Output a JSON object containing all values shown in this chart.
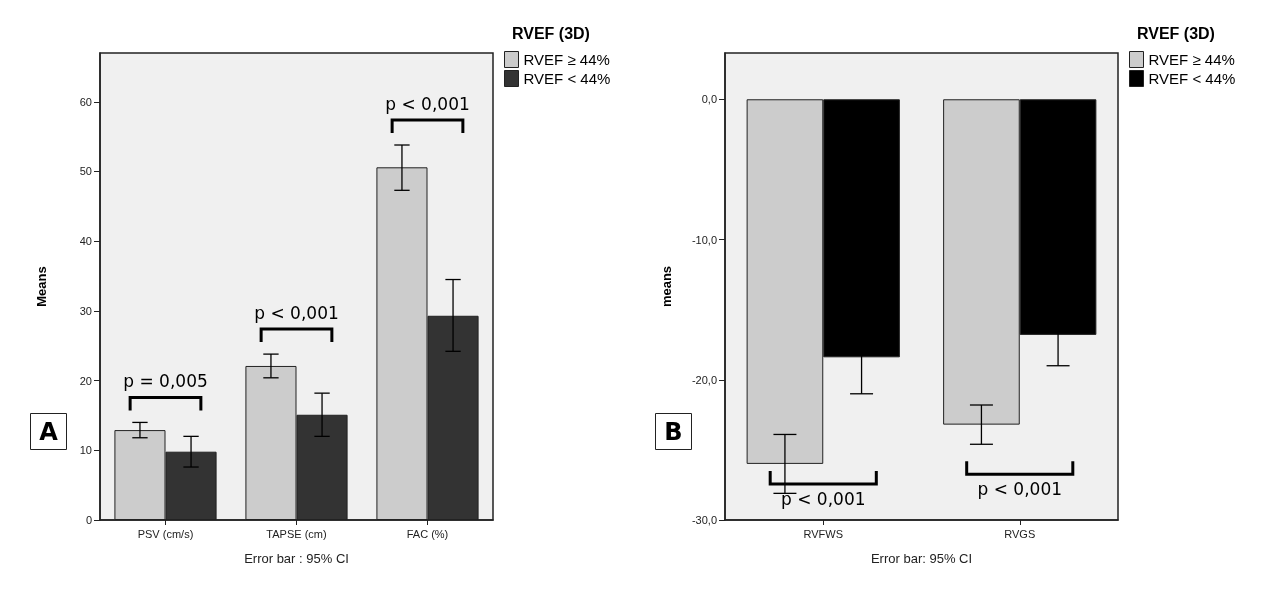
{
  "chart_data": [
    {
      "type": "bar",
      "ylabel": "Means",
      "xlabel": "Error bar : 95% CI",
      "legend_title": "RVEF (3D)",
      "legend": "top right",
      "categories": [
        "PSV (cm/s)",
        "TAPSE (cm)",
        "FAC (%)"
      ],
      "series": [
        {
          "name": "RVEF ≥ 44%",
          "color": "#cccccc",
          "values": [
            12.9,
            22.1,
            50.6
          ],
          "errors": [
            [
              11.8,
              14.0
            ],
            [
              20.4,
              23.8
            ],
            [
              47.3,
              53.8
            ]
          ]
        },
        {
          "name": "RVEF < 44%",
          "color": "#333333",
          "values": [
            9.8,
            15.1,
            29.3
          ],
          "errors": [
            [
              7.6,
              12.0
            ],
            [
              12.0,
              18.2
            ],
            [
              24.2,
              34.5
            ]
          ]
        }
      ],
      "ylim": [
        0,
        67
      ],
      "yticks": [
        0,
        10,
        20,
        30,
        40,
        50,
        60
      ],
      "grid": false,
      "annotations": [
        "A",
        "p = 0,005",
        "p < 0,001",
        "p < 0,001"
      ]
    },
    {
      "type": "bar",
      "ylabel": "means",
      "xlabel": "Error bar: 95% CI",
      "legend_title": "RVEF (3D)",
      "legend": "top right",
      "categories": [
        "RVFWS",
        "RVGS"
      ],
      "series": [
        {
          "name": "RVEF ≥ 44%",
          "color": "#cccccc",
          "values": [
            -26.0,
            -23.2
          ],
          "errors": [
            [
              -28.1,
              -23.9
            ],
            [
              -24.6,
              -21.8
            ]
          ]
        },
        {
          "name": "RVEF < 44%",
          "color": "#000000",
          "values": [
            -18.4,
            -16.8
          ],
          "errors": [
            2.6,
            2.2
          ]
        }
      ],
      "ylim": [
        -30,
        3.3
      ],
      "yticks": [
        {
          "value": -30,
          "label": "-30,0"
        },
        {
          "value": -20,
          "label": "-20,0"
        },
        {
          "value": -10,
          "label": "-10,0"
        },
        {
          "value": 0,
          "label": "0,0"
        }
      ],
      "grid": false,
      "annotations": [
        "B",
        "p < 0,001",
        "p < 0,001"
      ]
    }
  ]
}
